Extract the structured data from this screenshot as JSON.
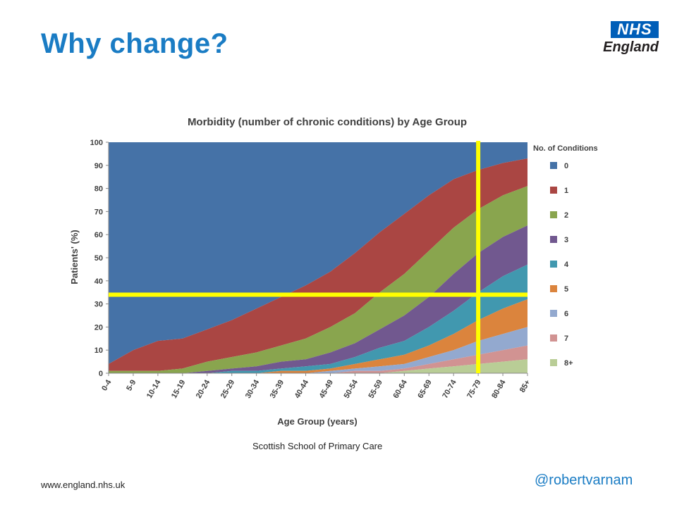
{
  "slide": {
    "title": "Why change?",
    "logo": {
      "badge": "NHS",
      "sub": "England"
    },
    "caption": "Scottish School of Primary Care",
    "footer_url": "www.england.nhs.uk",
    "handle": "@robertvarnam",
    "colors": {
      "title": "#1a7cc4",
      "logo": "#005eb8",
      "highlight": "#ffff00"
    }
  },
  "chart_data": {
    "type": "area",
    "stacked": true,
    "title": "Morbidity (number of chronic conditions) by Age Group",
    "xlabel": "Age Group (years)",
    "ylabel": "Patients' (%)",
    "ylim": [
      0,
      100
    ],
    "yticks": [
      0,
      10,
      20,
      30,
      40,
      50,
      60,
      70,
      80,
      90,
      100
    ],
    "legend_title": "No. of Conditions",
    "legend_position": "right",
    "categories": [
      "0-4",
      "5-9",
      "10-14",
      "15-19",
      "20-24",
      "25-29",
      "30-34",
      "35-39",
      "40-44",
      "45-49",
      "50-54",
      "55-59",
      "60-64",
      "65-69",
      "70-74",
      "75-79",
      "80-84",
      "85+"
    ],
    "series": [
      {
        "name": "0",
        "color": "#4572a7",
        "values": [
          96,
          90,
          86,
          85,
          81,
          77,
          72,
          67,
          62,
          56,
          48,
          39,
          31,
          23,
          16,
          12,
          9,
          7
        ]
      },
      {
        "name": "1",
        "color": "#aa4643",
        "values": [
          3,
          9,
          13,
          13,
          14,
          16,
          19,
          21,
          23,
          24,
          26,
          26,
          26,
          24,
          21,
          17,
          14,
          12
        ]
      },
      {
        "name": "2",
        "color": "#89a54e",
        "values": [
          1,
          1,
          1,
          2,
          4,
          5,
          6,
          7,
          9,
          11,
          13,
          16,
          18,
          20,
          20,
          19,
          18,
          17
        ]
      },
      {
        "name": "3",
        "color": "#71588f",
        "values": [
          0,
          0,
          0,
          0,
          1,
          1,
          2,
          3,
          3,
          5,
          6,
          8,
          11,
          13,
          16,
          17,
          17,
          17
        ]
      },
      {
        "name": "4",
        "color": "#4198af",
        "values": [
          0,
          0,
          0,
          0,
          0,
          1,
          1,
          1,
          2,
          2,
          3,
          5,
          6,
          8,
          10,
          12,
          14,
          15
        ]
      },
      {
        "name": "5",
        "color": "#db843d",
        "values": [
          0,
          0,
          0,
          0,
          0,
          0,
          0,
          1,
          1,
          1,
          2,
          3,
          4,
          5,
          7,
          9,
          11,
          12
        ]
      },
      {
        "name": "6",
        "color": "#93a9cf",
        "values": [
          0,
          0,
          0,
          0,
          0,
          0,
          0,
          0,
          0,
          1,
          1,
          2,
          2,
          3,
          4,
          6,
          7,
          8
        ]
      },
      {
        "name": "7",
        "color": "#d19392",
        "values": [
          0,
          0,
          0,
          0,
          0,
          0,
          0,
          0,
          0,
          0,
          1,
          1,
          1,
          2,
          3,
          4,
          5,
          6
        ]
      },
      {
        "name": "8+",
        "color": "#b9cd96",
        "values": [
          0,
          0,
          0,
          0,
          0,
          0,
          0,
          0,
          0,
          0,
          0,
          0,
          1,
          2,
          3,
          4,
          5,
          6
        ]
      }
    ],
    "highlight_lines": [
      {
        "axis": "y",
        "value": 34
      },
      {
        "axis": "x",
        "category": "75-79"
      }
    ]
  }
}
